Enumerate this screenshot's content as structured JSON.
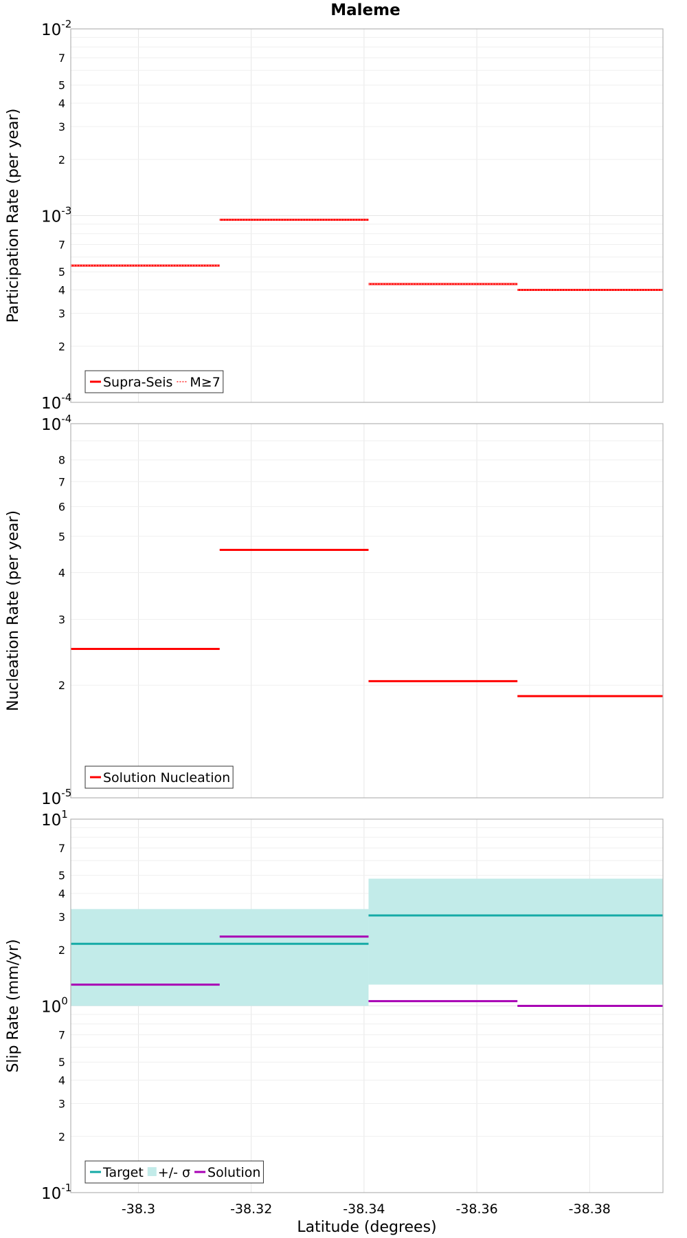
{
  "title": "Maleme",
  "colors": {
    "red": "#ff0000",
    "target": "#14aaa6",
    "sigma": "#c2ebe9",
    "solution": "#a800b4",
    "grid": "#e6e6e6",
    "frame": "#b3b3b3"
  },
  "chart_data": [
    {
      "type": "line",
      "panel": "top",
      "ylabel": "Participation Rate (per year)",
      "yscale": "log",
      "ylim": [
        0.0001,
        0.01
      ],
      "xlim": [
        -38.288,
        -38.393
      ],
      "x_axis_reversed": true,
      "legend_position": "bottom-left",
      "y_major_ticks": [
        {
          "base": "10",
          "exp": "-4",
          "value": 0.0001
        },
        {
          "base": "10",
          "exp": "-3",
          "value": 0.001
        },
        {
          "base": "10",
          "exp": "-2",
          "value": 0.01
        }
      ],
      "y_minor_ticks": [
        {
          "label": "2",
          "value": 0.0002
        },
        {
          "label": "3",
          "value": 0.0003
        },
        {
          "label": "4",
          "value": 0.0004
        },
        {
          "label": "5",
          "value": 0.0005
        },
        {
          "label": "7",
          "value": 0.0007
        },
        {
          "label": "2",
          "value": 0.002
        },
        {
          "label": "3",
          "value": 0.003
        },
        {
          "label": "4",
          "value": 0.004
        },
        {
          "label": "5",
          "value": 0.005
        },
        {
          "label": "7",
          "value": 0.007
        }
      ],
      "y_grid": [
        0.0002,
        0.0003,
        0.0004,
        0.0005,
        0.0006,
        0.0007,
        0.0008,
        0.0009,
        0.002,
        0.003,
        0.004,
        0.005,
        0.006,
        0.007,
        0.008,
        0.009
      ],
      "legend": [
        {
          "label": "Supra-Seis",
          "style": "solid"
        },
        {
          "label": "M≥7",
          "style": "dotted"
        }
      ],
      "series": [
        {
          "name": "Supra-Seis",
          "style": "solid",
          "color_key": "red",
          "segments": [
            {
              "x0": -38.288,
              "x1": -38.3144,
              "y": 0.00054
            },
            {
              "x0": -38.3144,
              "x1": -38.3408,
              "y": 0.00095
            },
            {
              "x0": -38.3408,
              "x1": -38.3672,
              "y": 0.00043
            },
            {
              "x0": -38.3672,
              "x1": -38.393,
              "y": 0.0004
            }
          ]
        },
        {
          "name": "M≥7",
          "style": "dotted",
          "color_key": "red",
          "segments": [
            {
              "x0": -38.288,
              "x1": -38.3144,
              "y": 0.00054
            },
            {
              "x0": -38.3144,
              "x1": -38.3408,
              "y": 0.00095
            },
            {
              "x0": -38.3408,
              "x1": -38.3672,
              "y": 0.00043
            },
            {
              "x0": -38.3672,
              "x1": -38.393,
              "y": 0.0004
            }
          ]
        }
      ]
    },
    {
      "type": "line",
      "panel": "middle",
      "ylabel": "Nucleation Rate (per year)",
      "yscale": "log",
      "ylim": [
        1e-05,
        0.0001
      ],
      "xlim": [
        -38.288,
        -38.393
      ],
      "x_axis_reversed": true,
      "legend_position": "bottom-left",
      "y_major_ticks": [
        {
          "base": "10",
          "exp": "-5",
          "value": 1e-05
        },
        {
          "base": "10",
          "exp": "-4",
          "value": 0.0001
        }
      ],
      "y_minor_ticks": [
        {
          "label": "2",
          "value": 2e-05
        },
        {
          "label": "3",
          "value": 3e-05
        },
        {
          "label": "4",
          "value": 4e-05
        },
        {
          "label": "5",
          "value": 5e-05
        },
        {
          "label": "6",
          "value": 6e-05
        },
        {
          "label": "7",
          "value": 7e-05
        },
        {
          "label": "8",
          "value": 8e-05
        }
      ],
      "y_grid": [
        2e-05,
        3e-05,
        4e-05,
        5e-05,
        6e-05,
        7e-05,
        8e-05,
        9e-05
      ],
      "legend": [
        {
          "label": "Solution Nucleation",
          "style": "solid"
        }
      ],
      "series": [
        {
          "name": "Solution Nucleation",
          "style": "solid",
          "color_key": "red",
          "segments": [
            {
              "x0": -38.288,
              "x1": -38.3144,
              "y": 2.5e-05
            },
            {
              "x0": -38.3144,
              "x1": -38.3408,
              "y": 4.6e-05
            },
            {
              "x0": -38.3408,
              "x1": -38.3672,
              "y": 2.05e-05
            },
            {
              "x0": -38.3672,
              "x1": -38.393,
              "y": 1.87e-05
            }
          ]
        }
      ]
    },
    {
      "type": "line",
      "panel": "bottom",
      "ylabel": "Slip Rate (mm/yr)",
      "xlabel": "Latitude (degrees)",
      "yscale": "log",
      "ylim": [
        0.1,
        10
      ],
      "xlim": [
        -38.288,
        -38.393
      ],
      "x_axis_reversed": true,
      "legend_position": "bottom-left",
      "x_ticks": [
        {
          "label": "-38.3",
          "value": -38.3
        },
        {
          "label": "-38.32",
          "value": -38.32
        },
        {
          "label": "-38.34",
          "value": -38.34
        },
        {
          "label": "-38.36",
          "value": -38.36
        },
        {
          "label": "-38.38",
          "value": -38.38
        }
      ],
      "y_major_ticks": [
        {
          "base": "10",
          "exp": "-1",
          "value": 0.1
        },
        {
          "base": "10",
          "exp": "0",
          "value": 1
        },
        {
          "base": "10",
          "exp": "1",
          "value": 10
        }
      ],
      "y_minor_ticks": [
        {
          "label": "2",
          "value": 0.2
        },
        {
          "label": "3",
          "value": 0.3
        },
        {
          "label": "4",
          "value": 0.4
        },
        {
          "label": "5",
          "value": 0.5
        },
        {
          "label": "7",
          "value": 0.7
        },
        {
          "label": "2",
          "value": 2
        },
        {
          "label": "3",
          "value": 3
        },
        {
          "label": "4",
          "value": 4
        },
        {
          "label": "5",
          "value": 5
        },
        {
          "label": "7",
          "value": 7
        }
      ],
      "y_grid": [
        0.2,
        0.3,
        0.4,
        0.5,
        0.6,
        0.7,
        0.8,
        0.9,
        2,
        3,
        4,
        5,
        6,
        7,
        8,
        9
      ],
      "legend": [
        {
          "label": "Target",
          "style": "line"
        },
        {
          "label": "+/- σ",
          "style": "fill"
        },
        {
          "label": "Solution",
          "style": "line"
        }
      ],
      "sigma_band": {
        "name": "+/- σ",
        "color_key": "sigma",
        "segments": [
          {
            "x0": -38.288,
            "x1": -38.3408,
            "low": 1.0,
            "high": 3.3
          },
          {
            "x0": -38.3408,
            "x1": -38.393,
            "low": 1.3,
            "high": 4.8
          }
        ]
      },
      "series": [
        {
          "name": "Target",
          "color_key": "target",
          "segments": [
            {
              "x0": -38.288,
              "x1": -38.3408,
              "y": 2.15
            },
            {
              "x0": -38.3408,
              "x1": -38.393,
              "y": 3.05
            }
          ]
        },
        {
          "name": "Solution",
          "color_key": "solution",
          "segments": [
            {
              "x0": -38.288,
              "x1": -38.3144,
              "y": 1.3
            },
            {
              "x0": -38.3144,
              "x1": -38.3408,
              "y": 2.35
            },
            {
              "x0": -38.3408,
              "x1": -38.3672,
              "y": 1.06
            },
            {
              "x0": -38.3672,
              "x1": -38.393,
              "y": 1.0
            }
          ]
        }
      ]
    }
  ]
}
